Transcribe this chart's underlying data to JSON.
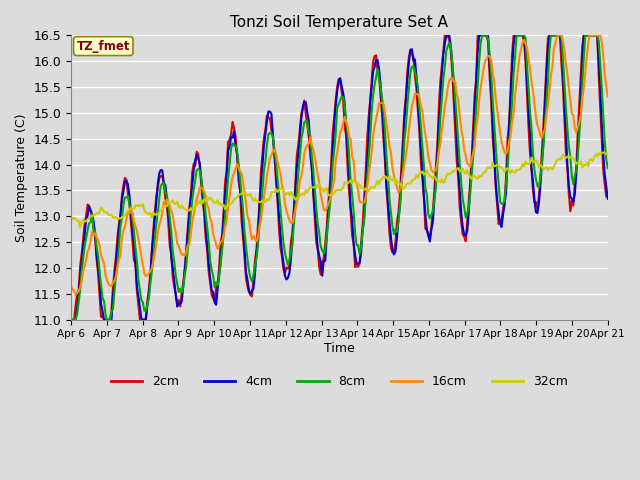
{
  "title": "Tonzi Soil Temperature Set A",
  "xlabel": "Time",
  "ylabel": "Soil Temperature (C)",
  "ylim": [
    11.0,
    16.5
  ],
  "background_color": "#dcdcdc",
  "plot_bg_color": "#dcdcdc",
  "legend_label": "TZ_fmet",
  "legend_box_color": "#ffffcc",
  "legend_box_edge": "#888800",
  "legend_text_color": "#880000",
  "series_colors": [
    "#dd0000",
    "#0000cc",
    "#00aa00",
    "#ff8800",
    "#cccc00"
  ],
  "series_labels": [
    "2cm",
    "4cm",
    "8cm",
    "16cm",
    "32cm"
  ],
  "x_tick_labels": [
    "Apr 6",
    "Apr 7",
    "Apr 8",
    "Apr 9",
    "Apr 10",
    "Apr 11",
    "Apr 12",
    "Apr 13",
    "Apr 14",
    "Apr 15",
    "Apr 16",
    "Apr 17",
    "Apr 18",
    "Apr 19",
    "Apr 20",
    "Apr 21"
  ],
  "figsize": [
    6.4,
    4.8
  ],
  "dpi": 100
}
